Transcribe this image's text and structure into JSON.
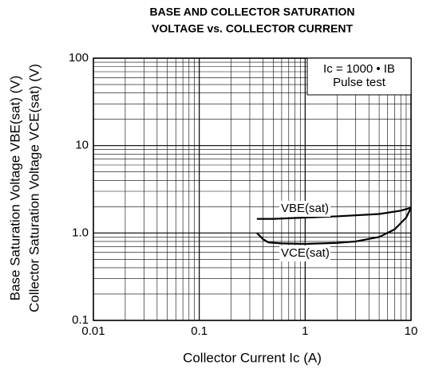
{
  "chart_data": {
    "type": "line",
    "title": [
      "BASE AND COLLECTOR SATURATION",
      "VOLTAGE vs. COLLECTOR CURRENT"
    ],
    "x_label": "Collector Current  Ic  (A)",
    "y_label": [
      "Base Saturation Voltage  VBE(sat)  (V)",
      "Collector Saturation Voltage  VCE(sat)  (V)"
    ],
    "annotations": [
      "Ic = 1000 • IB",
      "Pulse test"
    ],
    "log_x": true,
    "log_y": true,
    "grid": true,
    "xlim": [
      0.01,
      10
    ],
    "ylim": [
      0.1,
      100
    ],
    "xticks": [
      0.01,
      0.1,
      1,
      10
    ],
    "yticks": [
      0.1,
      {
        "value": 1,
        "label": "1.0"
      },
      10,
      100
    ],
    "xminor_ticks": [
      0.02,
      0.03,
      0.04,
      0.05,
      0.06,
      0.07,
      0.08,
      0.09,
      0.2,
      0.3,
      0.4,
      0.5,
      0.6,
      0.7,
      0.8,
      0.9,
      2,
      3,
      4,
      5,
      6,
      7,
      8,
      9
    ],
    "yminor_ticks": [
      0.2,
      0.3,
      0.4,
      0.5,
      0.6,
      0.7,
      0.8,
      0.9,
      2,
      3,
      4,
      5,
      6,
      7,
      8,
      9,
      20,
      30,
      40,
      50,
      60,
      70,
      80,
      90
    ],
    "series": [
      {
        "name": "VBE(sat)",
        "color": "#000000",
        "x": [
          0.35,
          0.5,
          1,
          2,
          5,
          8,
          10
        ],
        "values": [
          1.45,
          1.45,
          1.5,
          1.55,
          1.65,
          1.8,
          1.95
        ]
      },
      {
        "name": "VCE(sat)",
        "color": "#000000",
        "x": [
          0.35,
          0.4,
          0.45,
          0.6,
          1,
          2,
          3,
          5,
          7,
          9,
          10
        ],
        "values": [
          1.0,
          0.85,
          0.78,
          0.76,
          0.75,
          0.77,
          0.8,
          0.9,
          1.1,
          1.5,
          1.95
        ]
      }
    ]
  }
}
